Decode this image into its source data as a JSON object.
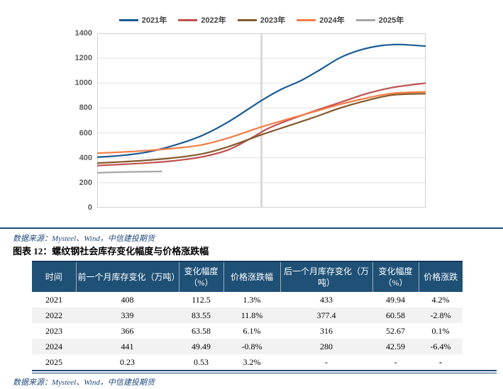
{
  "source_top": "数据来源：Mysteel、Wind，中信建投期货",
  "caption": "图表 12：螺纹钢社会库存变化幅度与价格涨跌幅",
  "source_bottom": "数据来源：Mysteel、Wind，中信建投期货",
  "theme": {
    "rule_color": "#1F4E79",
    "table_header_bg": "#1F5076",
    "row_stripe": "#F2F2F2",
    "gridline": "#E2E2E2",
    "marker_line": "#D9D9D9",
    "red_text": "#FF1A1A"
  },
  "chart_data": {
    "type": "line",
    "title": "",
    "xlabel": "",
    "ylabel": "",
    "ylim": [
      0,
      1400
    ],
    "yticks": [
      0,
      200,
      400,
      600,
      800,
      1000,
      1200,
      1400
    ],
    "grid": "horizontal",
    "legend_position": "top",
    "vertical_marker_x": 0.5,
    "series": [
      {
        "name": "2021年",
        "color": "#1A5A96",
        "points": [
          [
            0,
            405
          ],
          [
            0.08,
            420
          ],
          [
            0.16,
            450
          ],
          [
            0.24,
            505
          ],
          [
            0.32,
            580
          ],
          [
            0.4,
            690
          ],
          [
            0.5,
            860
          ],
          [
            0.56,
            950
          ],
          [
            0.62,
            1020
          ],
          [
            0.68,
            1110
          ],
          [
            0.74,
            1205
          ],
          [
            0.8,
            1265
          ],
          [
            0.86,
            1300
          ],
          [
            0.92,
            1310
          ],
          [
            1.0,
            1297
          ]
        ]
      },
      {
        "name": "2022年",
        "color": "#C0504D",
        "points": [
          [
            0,
            338
          ],
          [
            0.08,
            348
          ],
          [
            0.16,
            360
          ],
          [
            0.24,
            378
          ],
          [
            0.32,
            408
          ],
          [
            0.4,
            465
          ],
          [
            0.47,
            560
          ],
          [
            0.52,
            635
          ],
          [
            0.58,
            700
          ],
          [
            0.66,
            775
          ],
          [
            0.74,
            845
          ],
          [
            0.82,
            915
          ],
          [
            0.9,
            965
          ],
          [
            1.0,
            1000
          ]
        ]
      },
      {
        "name": "2023年",
        "color": "#84592B",
        "points": [
          [
            0,
            358
          ],
          [
            0.08,
            368
          ],
          [
            0.16,
            382
          ],
          [
            0.24,
            402
          ],
          [
            0.32,
            432
          ],
          [
            0.4,
            490
          ],
          [
            0.5,
            585
          ],
          [
            0.58,
            655
          ],
          [
            0.66,
            725
          ],
          [
            0.74,
            800
          ],
          [
            0.82,
            860
          ],
          [
            0.9,
            905
          ],
          [
            1.0,
            915
          ]
        ]
      },
      {
        "name": "2024年",
        "color": "#F47C44",
        "points": [
          [
            0,
            437
          ],
          [
            0.08,
            447
          ],
          [
            0.16,
            460
          ],
          [
            0.24,
            478
          ],
          [
            0.32,
            505
          ],
          [
            0.4,
            560
          ],
          [
            0.5,
            648
          ],
          [
            0.58,
            710
          ],
          [
            0.66,
            770
          ],
          [
            0.74,
            830
          ],
          [
            0.82,
            880
          ],
          [
            0.9,
            918
          ],
          [
            1.0,
            930
          ]
        ]
      },
      {
        "name": "2025年",
        "color": "#A6A6A6",
        "points": [
          [
            0,
            280
          ],
          [
            0.1,
            287
          ],
          [
            0.195,
            290
          ]
        ]
      }
    ]
  },
  "table": {
    "headers": [
      "时间",
      "前一个月库存变化（万吨）",
      "变化幅度（%）",
      "价格涨跌幅",
      "后一个月库存变化（万吨）",
      "变化幅度（%）",
      "价格涨跌"
    ],
    "rows": [
      [
        "2021",
        "408",
        "112.5",
        "1.3%",
        "433",
        "49.94",
        "4.2%"
      ],
      [
        "2022",
        "339",
        "83.55",
        "11.8%",
        "377.4",
        "60.58",
        "-2.8%"
      ],
      [
        "2023",
        "366",
        "63.58",
        "6.1%",
        "316",
        "52.67",
        "0.1%"
      ],
      [
        "2024",
        "441",
        "49.49",
        "-0.8%",
        "280",
        "42.59",
        "-6.4%"
      ],
      [
        "2025",
        "0.23",
        "0.53",
        "3.2%",
        "-",
        "-",
        "-"
      ]
    ],
    "red_cells": [
      [
        4,
        6
      ]
    ]
  }
}
